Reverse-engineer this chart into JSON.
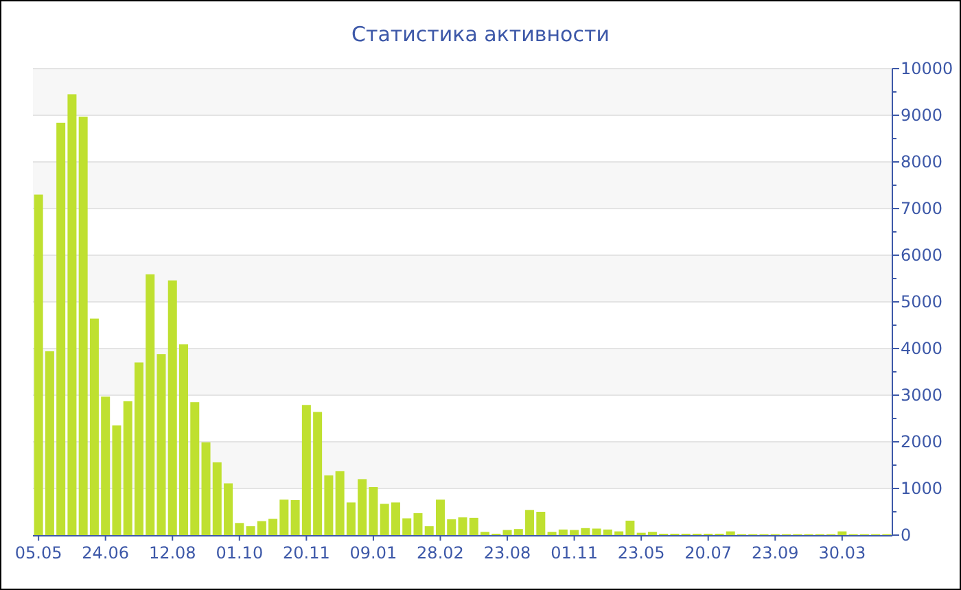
{
  "chart_data": {
    "type": "bar",
    "title": "Статистика активности",
    "categories": [
      "05.05",
      null,
      null,
      null,
      null,
      null,
      "24.06",
      null,
      null,
      null,
      null,
      null,
      "12.08",
      null,
      null,
      null,
      null,
      null,
      "01.10",
      null,
      null,
      null,
      null,
      null,
      "20.11",
      null,
      null,
      null,
      null,
      null,
      "09.01",
      null,
      null,
      null,
      null,
      null,
      "28.02",
      null,
      null,
      null,
      null,
      null,
      "23.08",
      null,
      null,
      null,
      null,
      null,
      "01.11",
      null,
      null,
      null,
      null,
      null,
      "23.05",
      null,
      null,
      null,
      null,
      null,
      "20.07",
      null,
      null,
      null,
      null,
      null,
      "23.09",
      null,
      null,
      null,
      null,
      null,
      "30.03",
      null,
      null,
      null,
      null
    ],
    "values": [
      7300,
      3940,
      8840,
      9450,
      8970,
      4640,
      2970,
      2350,
      2870,
      3700,
      5590,
      3880,
      5460,
      4090,
      2850,
      1990,
      1560,
      1110,
      260,
      190,
      300,
      350,
      760,
      750,
      2790,
      2640,
      1280,
      1370,
      700,
      1200,
      1030,
      670,
      700,
      360,
      470,
      190,
      760,
      340,
      380,
      370,
      70,
      30,
      110,
      130,
      540,
      500,
      70,
      120,
      110,
      150,
      140,
      120,
      80,
      310,
      50,
      70,
      30,
      30,
      30,
      30,
      30,
      30,
      80,
      20,
      20,
      20,
      20,
      20,
      20,
      20,
      20,
      20,
      80,
      20,
      20,
      20,
      20
    ],
    "color": "#bfe030",
    "ylim": [
      0,
      10000
    ],
    "yticks": [
      0,
      {
        "value": 500,
        "label": null
      },
      1000,
      {
        "value": 1500,
        "label": null
      },
      2000,
      {
        "value": 2500,
        "label": null
      },
      3000,
      {
        "value": 3500,
        "label": null
      },
      4000,
      {
        "value": 4500,
        "label": null
      },
      5000,
      {
        "value": 5500,
        "label": null
      },
      6000,
      {
        "value": 6500,
        "label": null
      },
      7000,
      {
        "value": 7500,
        "label": null
      },
      8000,
      {
        "value": 8500,
        "label": null
      },
      9000,
      {
        "value": 9500,
        "label": null
      },
      10000
    ],
    "grid": "y"
  }
}
